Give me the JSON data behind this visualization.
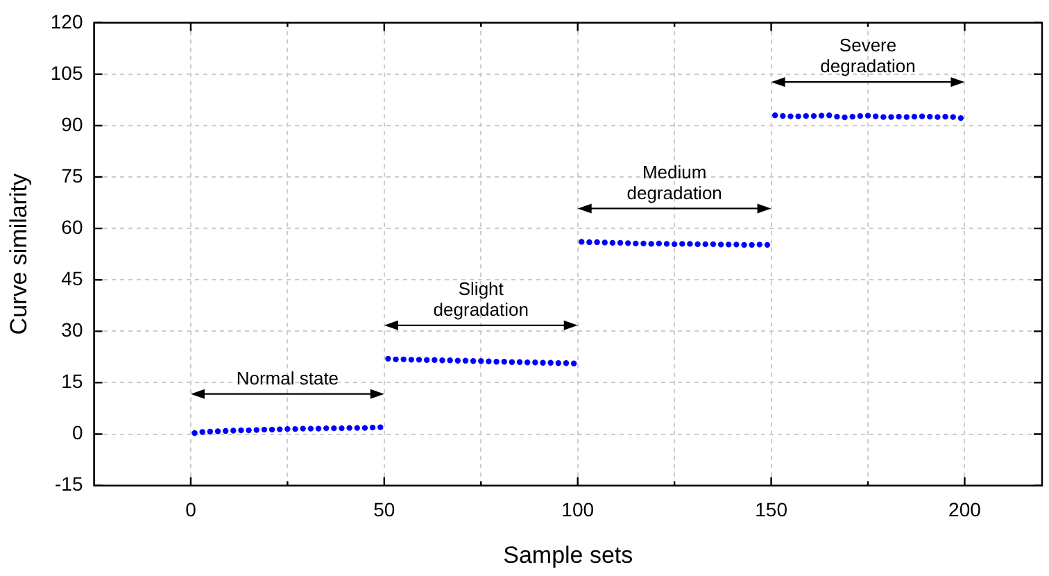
{
  "chart_data": {
    "type": "scatter",
    "xlabel": "Sample sets",
    "ylabel": "Curve similarity",
    "x": [
      1,
      3,
      5,
      7,
      9,
      11,
      13,
      15,
      17,
      19,
      21,
      23,
      25,
      27,
      29,
      31,
      33,
      35,
      37,
      39,
      41,
      43,
      45,
      47,
      49,
      51,
      53,
      55,
      57,
      59,
      61,
      63,
      65,
      67,
      69,
      71,
      73,
      75,
      77,
      79,
      81,
      83,
      85,
      87,
      89,
      91,
      93,
      95,
      97,
      99,
      101,
      103,
      105,
      107,
      109,
      111,
      113,
      115,
      117,
      119,
      121,
      123,
      125,
      127,
      129,
      131,
      133,
      135,
      137,
      139,
      141,
      143,
      145,
      147,
      149,
      151,
      153,
      155,
      157,
      159,
      161,
      163,
      165,
      167,
      169,
      171,
      173,
      175,
      177,
      179,
      181,
      183,
      185,
      187,
      189,
      191,
      193,
      195,
      197,
      199
    ],
    "series": [
      {
        "color": "#0000ff",
        "values": [
          0.3,
          0.6,
          0.7,
          0.8,
          0.9,
          1.0,
          1.1,
          1.1,
          1.2,
          1.3,
          1.3,
          1.4,
          1.5,
          1.5,
          1.6,
          1.6,
          1.6,
          1.7,
          1.7,
          1.7,
          1.8,
          1.8,
          1.8,
          1.9,
          2.0,
          22.0,
          21.8,
          21.8,
          21.7,
          21.7,
          21.6,
          21.6,
          21.5,
          21.5,
          21.4,
          21.4,
          21.3,
          21.3,
          21.2,
          21.1,
          21.1,
          21.0,
          21.0,
          20.9,
          20.9,
          20.8,
          20.8,
          20.7,
          20.7,
          20.6,
          56.1,
          56.0,
          56.0,
          55.9,
          55.8,
          55.8,
          55.7,
          55.6,
          55.6,
          55.5,
          55.6,
          55.5,
          55.4,
          55.5,
          55.5,
          55.4,
          55.4,
          55.4,
          55.3,
          55.3,
          55.3,
          55.2,
          55.2,
          55.3,
          55.2,
          93.0,
          92.8,
          92.7,
          92.7,
          92.8,
          92.8,
          92.9,
          93.0,
          92.6,
          92.4,
          92.6,
          92.8,
          92.9,
          92.7,
          92.5,
          92.5,
          92.6,
          92.5,
          92.6,
          92.7,
          92.6,
          92.5,
          92.6,
          92.5,
          92.2
        ]
      }
    ],
    "xlim": [
      -25,
      220
    ],
    "xticks": [
      0,
      {
        "value": 25,
        "label": null
      },
      50,
      {
        "value": 75,
        "label": null
      },
      100,
      {
        "value": 125,
        "label": null
      },
      150,
      {
        "value": 175,
        "label": null
      },
      200
    ],
    "ylim": [
      -15,
      120
    ],
    "yticks": [
      -15,
      0,
      15,
      30,
      45,
      60,
      75,
      90,
      105,
      120
    ],
    "grid": true,
    "marker": "circle",
    "legend": false,
    "annotations": [
      "Normal state",
      "Slight degradation",
      "Medium degradation",
      "Severe degradation"
    ]
  }
}
